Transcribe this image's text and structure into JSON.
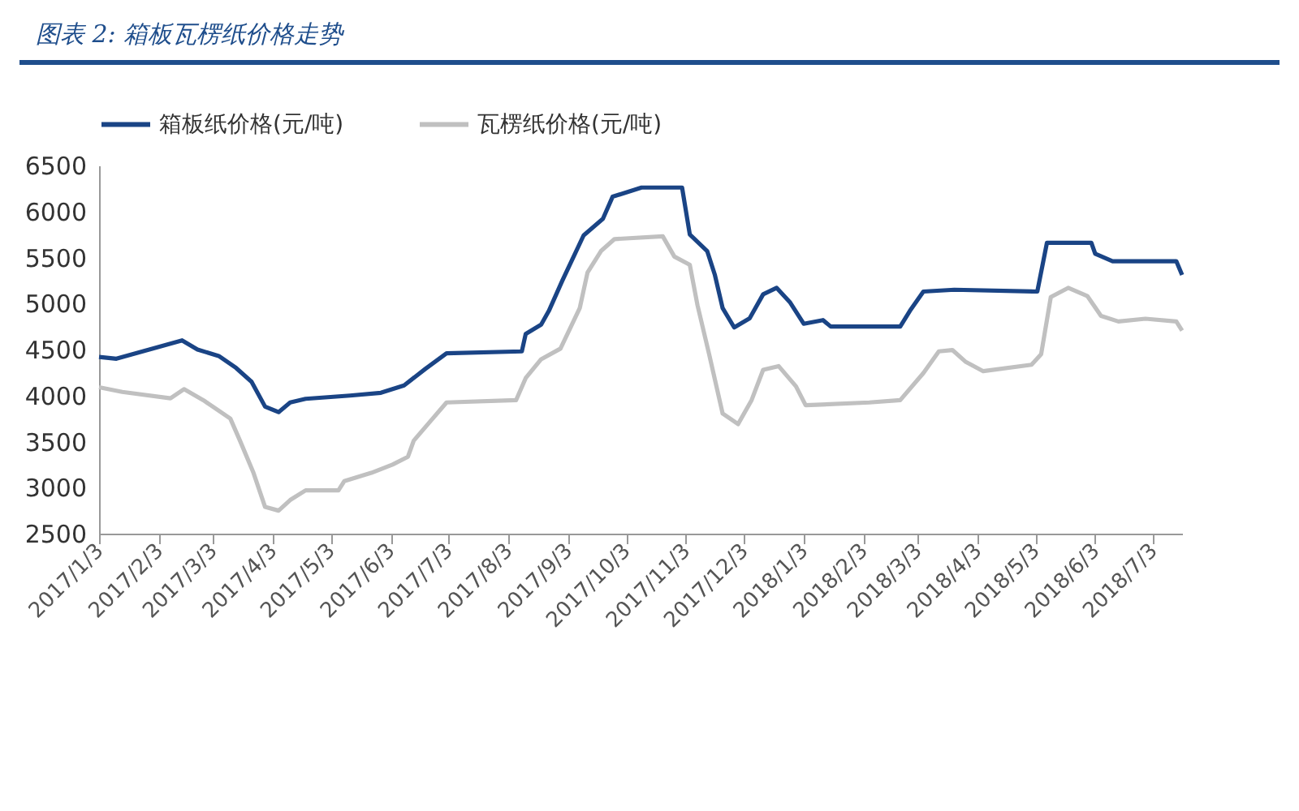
{
  "chart_data": {
    "type": "line",
    "title": "图表 2:  箱板瓦楞纸价格走势",
    "xlim": [
      "2017-01-03",
      "2018-07-18"
    ],
    "xticks": [
      {
        "value": "2017-01-03",
        "label": "2017/1/3"
      },
      {
        "value": "2017-02-03",
        "label": "2017/2/3"
      },
      {
        "value": "2017-03-03",
        "label": "2017/3/3"
      },
      {
        "value": "2017-04-03",
        "label": "2017/4/3"
      },
      {
        "value": "2017-05-03",
        "label": "2017/5/3"
      },
      {
        "value": "2017-06-03",
        "label": "2017/6/3"
      },
      {
        "value": "2017-07-03",
        "label": "2017/7/3"
      },
      {
        "value": "2017-08-03",
        "label": "2017/8/3"
      },
      {
        "value": "2017-09-03",
        "label": "2017/9/3"
      },
      {
        "value": "2017-10-03",
        "label": "2017/10/3"
      },
      {
        "value": "2017-11-03",
        "label": "2017/11/3"
      },
      {
        "value": "2017-12-03",
        "label": "2017/12/3"
      },
      {
        "value": "2018-01-03",
        "label": "2018/1/3"
      },
      {
        "value": "2018-02-03",
        "label": "2018/2/3"
      },
      {
        "value": "2018-03-03",
        "label": "2018/3/3"
      },
      {
        "value": "2018-04-03",
        "label": "2018/4/3"
      },
      {
        "value": "2018-05-03",
        "label": "2018/5/3"
      },
      {
        "value": "2018-06-03",
        "label": "2018/6/3"
      },
      {
        "value": "2018-07-03",
        "label": "2018/7/3"
      }
    ],
    "ylim": [
      2500,
      6500
    ],
    "yticks": [
      2500,
      3000,
      3500,
      4000,
      4500,
      5000,
      5500,
      6000,
      6500
    ],
    "grid": false,
    "legend": "top",
    "line_style": "solid",
    "marker": "none",
    "series": [
      {
        "name": "箱板纸价格(元/吨)",
        "color": "#1a4485",
        "x": [
          "2017-01-03",
          "2017-01-12",
          "2017-02-15",
          "2017-02-23",
          "2017-03-06",
          "2017-03-15",
          "2017-03-23",
          "2017-03-30",
          "2017-04-06",
          "2017-04-12",
          "2017-04-20",
          "2017-05-13",
          "2017-05-29",
          "2017-06-10",
          "2017-06-21",
          "2017-07-02",
          "2017-08-10",
          "2017-08-12",
          "2017-08-20",
          "2017-08-24",
          "2017-08-31",
          "2017-09-11",
          "2017-09-21",
          "2017-09-26",
          "2017-10-11",
          "2017-11-01",
          "2017-11-05",
          "2017-11-14",
          "2017-11-18",
          "2017-11-22",
          "2017-11-28",
          "2017-12-06",
          "2017-12-13",
          "2017-12-20",
          "2017-12-27",
          "2018-01-03",
          "2018-01-13",
          "2018-01-17",
          "2018-02-22",
          "2018-02-27",
          "2018-03-06",
          "2018-03-22",
          "2018-05-04",
          "2018-05-09",
          "2018-06-01",
          "2018-06-03",
          "2018-06-12",
          "2018-07-15",
          "2018-07-18"
        ],
        "values": [
          4420,
          4400,
          4600,
          4500,
          4430,
          4300,
          4150,
          3880,
          3820,
          3925,
          3965,
          4000,
          4030,
          4110,
          4290,
          4460,
          4480,
          4670,
          4770,
          4920,
          5250,
          5740,
          5920,
          6160,
          6260,
          6260,
          5750,
          5570,
          5310,
          4950,
          4740,
          4840,
          5100,
          5170,
          5010,
          4780,
          4820,
          4750,
          4750,
          4920,
          5130,
          5150,
          5130,
          5660,
          5660,
          5540,
          5460,
          5460,
          5310
        ]
      },
      {
        "name": "瓦楞纸价格(元/吨)",
        "color": "#c0c0c0",
        "x": [
          "2017-01-03",
          "2017-01-15",
          "2017-02-09",
          "2017-02-16",
          "2017-02-26",
          "2017-03-06",
          "2017-03-12",
          "2017-03-17",
          "2017-03-24",
          "2017-03-30",
          "2017-04-06",
          "2017-04-12",
          "2017-04-20",
          "2017-05-07",
          "2017-05-10",
          "2017-05-24",
          "2017-06-04",
          "2017-06-12",
          "2017-06-15",
          "2017-06-24",
          "2017-07-02",
          "2017-08-07",
          "2017-08-12",
          "2017-08-20",
          "2017-08-30",
          "2017-09-09",
          "2017-09-13",
          "2017-09-20",
          "2017-09-27",
          "2017-10-22",
          "2017-10-28",
          "2017-11-05",
          "2017-11-09",
          "2017-11-15",
          "2017-11-22",
          "2017-11-30",
          "2017-12-07",
          "2017-12-13",
          "2017-12-21",
          "2017-12-30",
          "2018-01-04",
          "2018-02-06",
          "2018-02-22",
          "2018-03-06",
          "2018-03-14",
          "2018-03-21",
          "2018-03-28",
          "2018-04-06",
          "2018-05-01",
          "2018-05-06",
          "2018-05-11",
          "2018-05-20",
          "2018-05-30",
          "2018-06-06",
          "2018-06-15",
          "2018-06-29",
          "2018-07-15",
          "2018-07-18"
        ],
        "values": [
          4090,
          4040,
          3970,
          4070,
          3950,
          3835,
          3750,
          3510,
          3160,
          2790,
          2750,
          2865,
          2970,
          2970,
          3070,
          3160,
          3250,
          3335,
          3510,
          3730,
          3925,
          3950,
          4190,
          4395,
          4510,
          4950,
          5335,
          5570,
          5700,
          5730,
          5510,
          5420,
          4980,
          4450,
          3805,
          3690,
          3950,
          4280,
          4320,
          4100,
          3895,
          3925,
          3950,
          4245,
          4480,
          4495,
          4365,
          4265,
          4335,
          4450,
          5070,
          5170,
          5080,
          4865,
          4805,
          4835,
          4805,
          4705
        ]
      }
    ]
  }
}
